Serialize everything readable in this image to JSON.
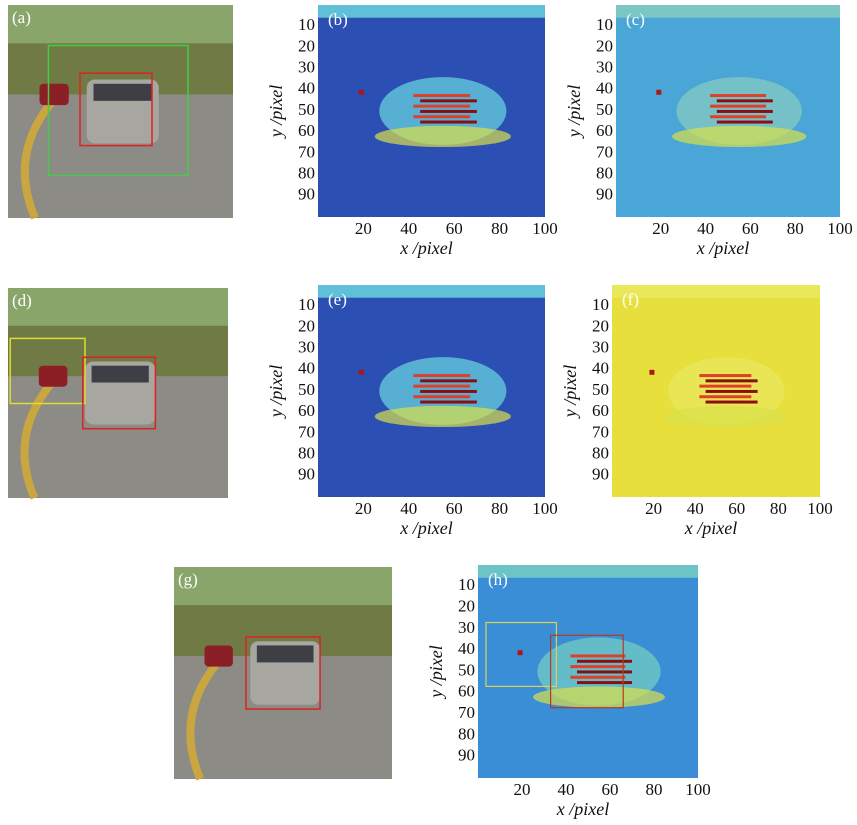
{
  "images": [
    {
      "label": "(a)"
    },
    {
      "label": "(d)"
    },
    {
      "label": "(g)"
    }
  ],
  "heatmaps": [
    {
      "label": "(b)",
      "xlim": [
        0,
        100
      ],
      "ylim": [
        0,
        100
      ],
      "xticks": [
        20,
        40,
        60,
        80,
        100
      ],
      "yticks": [
        10,
        20,
        30,
        40,
        50,
        60,
        70,
        80,
        90
      ],
      "xlabel": "x /pixel",
      "ylabel": "y /pixel"
    },
    {
      "label": "(c)",
      "xlim": [
        0,
        100
      ],
      "ylim": [
        0,
        100
      ],
      "xticks": [
        20,
        40,
        60,
        80,
        100
      ],
      "yticks": [
        10,
        20,
        30,
        40,
        50,
        60,
        70,
        80,
        90
      ],
      "xlabel": "x /pixel",
      "ylabel": "y /pixel"
    },
    {
      "label": "(e)",
      "xlim": [
        0,
        100
      ],
      "ylim": [
        0,
        100
      ],
      "xticks": [
        20,
        40,
        60,
        80,
        100
      ],
      "yticks": [
        10,
        20,
        30,
        40,
        50,
        60,
        70,
        80,
        90
      ],
      "xlabel": "x /pixel",
      "ylabel": "y /pixel"
    },
    {
      "label": "(f)",
      "xlim": [
        0,
        100
      ],
      "ylim": [
        0,
        100
      ],
      "xticks": [
        20,
        40,
        60,
        80,
        100
      ],
      "yticks": [
        10,
        20,
        30,
        40,
        50,
        60,
        70,
        80,
        90
      ],
      "xlabel": "x /pixel",
      "ylabel": "y /pixel"
    },
    {
      "label": "(h)",
      "xlim": [
        0,
        100
      ],
      "ylim": [
        0,
        100
      ],
      "xticks": [
        20,
        40,
        60,
        80,
        100
      ],
      "yticks": [
        10,
        20,
        30,
        40,
        50,
        60,
        70,
        80,
        90
      ],
      "xlabel": "x /pixel",
      "ylabel": "y /pixel"
    }
  ]
}
